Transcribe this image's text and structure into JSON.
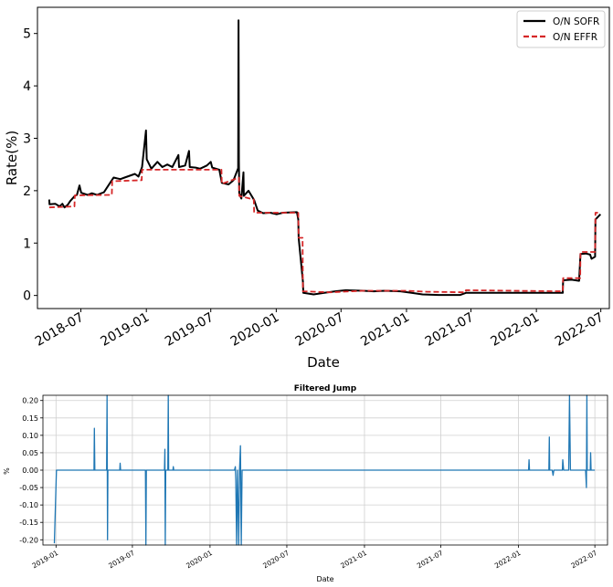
{
  "chart_data": [
    {
      "type": "line",
      "title": "",
      "xlabel": "Date",
      "ylabel": "Rate(%)",
      "ylim": [
        -0.25,
        5.5
      ],
      "xlim": [
        "2018-03-01",
        "2022-07-25"
      ],
      "x_ticks": [
        "2018-07",
        "2019-01",
        "2019-07",
        "2020-01",
        "2020-07",
        "2021-01",
        "2021-07",
        "2022-01",
        "2022-07"
      ],
      "y_ticks": [
        0,
        1,
        2,
        3,
        4,
        5
      ],
      "grid": false,
      "legend_position": "top-right",
      "series": [
        {
          "name": "O/N SOFR",
          "color": "#000000",
          "style": "solid",
          "points": [
            [
              "2018-04-03",
              1.83
            ],
            [
              "2018-04-04",
              1.74
            ],
            [
              "2018-04-20",
              1.75
            ],
            [
              "2018-05-02",
              1.7
            ],
            [
              "2018-05-10",
              1.75
            ],
            [
              "2018-05-16",
              1.68
            ],
            [
              "2018-05-25",
              1.73
            ],
            [
              "2018-06-01",
              1.8
            ],
            [
              "2018-06-14",
              1.9
            ],
            [
              "2018-06-20",
              1.92
            ],
            [
              "2018-06-27",
              2.1
            ],
            [
              "2018-07-02",
              1.96
            ],
            [
              "2018-07-20",
              1.92
            ],
            [
              "2018-08-01",
              1.95
            ],
            [
              "2018-08-15",
              1.92
            ],
            [
              "2018-09-04",
              1.97
            ],
            [
              "2018-09-26",
              2.2
            ],
            [
              "2018-10-01",
              2.25
            ],
            [
              "2018-10-20",
              2.22
            ],
            [
              "2018-11-01",
              2.25
            ],
            [
              "2018-11-30",
              2.32
            ],
            [
              "2018-12-10",
              2.27
            ],
            [
              "2018-12-20",
              2.45
            ],
            [
              "2018-12-31",
              3.15
            ],
            [
              "2019-01-02",
              2.6
            ],
            [
              "2019-01-15",
              2.42
            ],
            [
              "2019-02-01",
              2.55
            ],
            [
              "2019-02-15",
              2.45
            ],
            [
              "2019-03-01",
              2.5
            ],
            [
              "2019-03-15",
              2.45
            ],
            [
              "2019-04-01",
              2.68
            ],
            [
              "2019-04-03",
              2.45
            ],
            [
              "2019-04-20",
              2.48
            ],
            [
              "2019-05-01",
              2.76
            ],
            [
              "2019-05-03",
              2.45
            ],
            [
              "2019-05-20",
              2.44
            ],
            [
              "2019-06-01",
              2.42
            ],
            [
              "2019-06-20",
              2.48
            ],
            [
              "2019-07-01",
              2.55
            ],
            [
              "2019-07-05",
              2.44
            ],
            [
              "2019-07-25",
              2.4
            ],
            [
              "2019-08-01",
              2.15
            ],
            [
              "2019-08-20",
              2.12
            ],
            [
              "2019-09-03",
              2.2
            ],
            [
              "2019-09-16",
              2.43
            ],
            [
              "2019-09-17",
              5.25
            ],
            [
              "2019-09-18",
              2.55
            ],
            [
              "2019-09-19",
              1.95
            ],
            [
              "2019-09-25",
              1.85
            ],
            [
              "2019-10-01",
              2.35
            ],
            [
              "2019-10-02",
              1.9
            ],
            [
              "2019-10-15",
              2.0
            ],
            [
              "2019-10-31",
              1.82
            ],
            [
              "2019-11-10",
              1.62
            ],
            [
              "2019-11-25",
              1.57
            ],
            [
              "2019-12-15",
              1.58
            ],
            [
              "2020-01-02",
              1.55
            ],
            [
              "2020-01-20",
              1.58
            ],
            [
              "2020-02-28",
              1.59
            ],
            [
              "2020-03-03",
              1.45
            ],
            [
              "2020-03-04",
              1.1
            ],
            [
              "2020-03-16",
              0.26
            ],
            [
              "2020-03-17",
              0.05
            ],
            [
              "2020-04-15",
              0.02
            ],
            [
              "2020-05-15",
              0.05
            ],
            [
              "2020-06-15",
              0.08
            ],
            [
              "2020-07-15",
              0.1
            ],
            [
              "2020-09-01",
              0.09
            ],
            [
              "2020-10-01",
              0.08
            ],
            [
              "2020-11-01",
              0.09
            ],
            [
              "2020-12-15",
              0.08
            ],
            [
              "2021-01-15",
              0.05
            ],
            [
              "2021-02-15",
              0.02
            ],
            [
              "2021-04-01",
              0.01
            ],
            [
              "2021-06-01",
              0.01
            ],
            [
              "2021-06-17",
              0.05
            ],
            [
              "2021-08-01",
              0.05
            ],
            [
              "2021-10-01",
              0.05
            ],
            [
              "2021-12-01",
              0.05
            ],
            [
              "2022-02-01",
              0.05
            ],
            [
              "2022-03-16",
              0.05
            ],
            [
              "2022-03-17",
              0.29
            ],
            [
              "2022-04-10",
              0.3
            ],
            [
              "2022-05-01",
              0.28
            ],
            [
              "2022-05-05",
              0.79
            ],
            [
              "2022-05-20",
              0.8
            ],
            [
              "2022-06-01",
              0.78
            ],
            [
              "2022-06-05",
              0.7
            ],
            [
              "2022-06-15",
              0.74
            ],
            [
              "2022-06-16",
              1.45
            ],
            [
              "2022-06-30",
              1.55
            ]
          ]
        },
        {
          "name": "O/N EFFR",
          "color": "#d62728",
          "style": "dashed",
          "points": [
            [
              "2018-04-03",
              1.68
            ],
            [
              "2018-06-13",
              1.7
            ],
            [
              "2018-06-14",
              1.91
            ],
            [
              "2018-09-26",
              1.92
            ],
            [
              "2018-09-27",
              2.18
            ],
            [
              "2018-12-19",
              2.2
            ],
            [
              "2018-12-20",
              2.4
            ],
            [
              "2019-07-31",
              2.4
            ],
            [
              "2019-08-01",
              2.13
            ],
            [
              "2019-09-18",
              2.25
            ],
            [
              "2019-09-19",
              1.9
            ],
            [
              "2019-10-30",
              1.83
            ],
            [
              "2019-10-31",
              1.58
            ],
            [
              "2020-03-03",
              1.58
            ],
            [
              "2020-03-04",
              1.1
            ],
            [
              "2020-03-15",
              1.1
            ],
            [
              "2020-03-16",
              0.08
            ],
            [
              "2020-06-01",
              0.06
            ],
            [
              "2020-09-01",
              0.09
            ],
            [
              "2021-01-01",
              0.09
            ],
            [
              "2021-03-01",
              0.07
            ],
            [
              "2021-06-16",
              0.06
            ],
            [
              "2021-06-17",
              0.1
            ],
            [
              "2022-03-16",
              0.08
            ],
            [
              "2022-03-17",
              0.33
            ],
            [
              "2022-05-04",
              0.33
            ],
            [
              "2022-05-05",
              0.83
            ],
            [
              "2022-06-15",
              0.83
            ],
            [
              "2022-06-16",
              1.58
            ],
            [
              "2022-06-30",
              1.58
            ]
          ]
        }
      ]
    },
    {
      "type": "line",
      "title": "Filtered Jump",
      "xlabel": "Date",
      "ylabel": "%",
      "ylim": [
        -0.215,
        0.215
      ],
      "xlim": [
        "2018-12-01",
        "2022-07-31"
      ],
      "x_ticks": [
        "2019-01",
        "2019-07",
        "2020-01",
        "2020-07",
        "2021-01",
        "2021-07",
        "2022-01",
        "2022-07"
      ],
      "y_ticks": [
        "0.20",
        "0.15",
        "0.10",
        "0.05",
        "0.00",
        "-0.05",
        "-0.10",
        "-0.15",
        "-0.20"
      ],
      "grid": true,
      "series": [
        {
          "name": "",
          "color": "#1f77b4",
          "points": [
            [
              "2018-12-28",
              -0.21
            ],
            [
              "2019-01-02",
              0.0
            ],
            [
              "2019-04-01",
              0.0
            ],
            [
              "2019-04-02",
              0.12
            ],
            [
              "2019-04-03",
              0.0
            ],
            [
              "2019-05-01",
              0.0
            ],
            [
              "2019-05-02",
              0.215
            ],
            [
              "2019-05-03",
              -0.2
            ],
            [
              "2019-05-04",
              0.0
            ],
            [
              "2019-06-01",
              0.0
            ],
            [
              "2019-06-02",
              0.02
            ],
            [
              "2019-06-03",
              0.0
            ],
            [
              "2019-08-01",
              0.0
            ],
            [
              "2019-08-02",
              -0.215
            ],
            [
              "2019-08-03",
              0.0
            ],
            [
              "2019-09-15",
              0.0
            ],
            [
              "2019-09-16",
              0.06
            ],
            [
              "2019-09-17",
              -0.215
            ],
            [
              "2019-09-18",
              0.0
            ],
            [
              "2019-09-23",
              0.0
            ],
            [
              "2019-09-24",
              0.215
            ],
            [
              "2019-09-25",
              0.0
            ],
            [
              "2019-10-05",
              0.0
            ],
            [
              "2019-10-06",
              0.01
            ],
            [
              "2019-10-07",
              0.0
            ],
            [
              "2020-02-28",
              0.0
            ],
            [
              "2020-03-01",
              0.01
            ],
            [
              "2020-03-02",
              -0.03
            ],
            [
              "2020-03-04",
              -0.215
            ],
            [
              "2020-03-06",
              0.0
            ],
            [
              "2020-03-09",
              -0.215
            ],
            [
              "2020-03-11",
              0.0
            ],
            [
              "2020-03-13",
              0.07
            ],
            [
              "2020-03-15",
              -0.215
            ],
            [
              "2020-03-17",
              0.0
            ],
            [
              "2022-01-25",
              0.0
            ],
            [
              "2022-01-26",
              0.03
            ],
            [
              "2022-01-27",
              0.0
            ],
            [
              "2022-03-14",
              0.0
            ],
            [
              "2022-03-15",
              0.095
            ],
            [
              "2022-03-16",
              0.0
            ],
            [
              "2022-03-22",
              0.0
            ],
            [
              "2022-03-24",
              -0.015
            ],
            [
              "2022-03-26",
              0.0
            ],
            [
              "2022-04-15",
              0.0
            ],
            [
              "2022-04-16",
              0.03
            ],
            [
              "2022-04-18",
              0.0
            ],
            [
              "2022-04-30",
              0.0
            ],
            [
              "2022-05-02",
              0.215
            ],
            [
              "2022-05-04",
              0.0
            ],
            [
              "2022-06-09",
              0.0
            ],
            [
              "2022-06-11",
              -0.05
            ],
            [
              "2022-06-12",
              0.215
            ],
            [
              "2022-06-13",
              0.0
            ],
            [
              "2022-06-20",
              0.0
            ],
            [
              "2022-06-21",
              0.05
            ],
            [
              "2022-06-22",
              0.0
            ],
            [
              "2022-07-01",
              0.0
            ]
          ]
        }
      ]
    }
  ]
}
